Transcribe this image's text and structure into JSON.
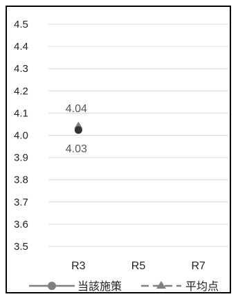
{
  "chart_data": {
    "type": "line",
    "categories": [
      "R3",
      "R5",
      "R7"
    ],
    "yticks": [
      "4.5",
      "4.4",
      "4.3",
      "4.2",
      "4.1",
      "4.0",
      "3.9",
      "3.8",
      "3.7",
      "3.6",
      "3.5"
    ],
    "ylim": [
      3.5,
      4.5
    ],
    "grid": true,
    "legend_position": "bottom",
    "series": [
      {
        "name": "当該施策",
        "values": [
          4.03,
          null,
          null
        ],
        "labels": [
          "4.03",
          "",
          ""
        ],
        "color": "#7f7f7f",
        "marker": "circle"
      },
      {
        "name": "平均点",
        "values": [
          4.04,
          null,
          null
        ],
        "labels": [
          "4.04",
          "",
          ""
        ],
        "color": "#7f7f7f",
        "marker": "triangle"
      }
    ]
  }
}
